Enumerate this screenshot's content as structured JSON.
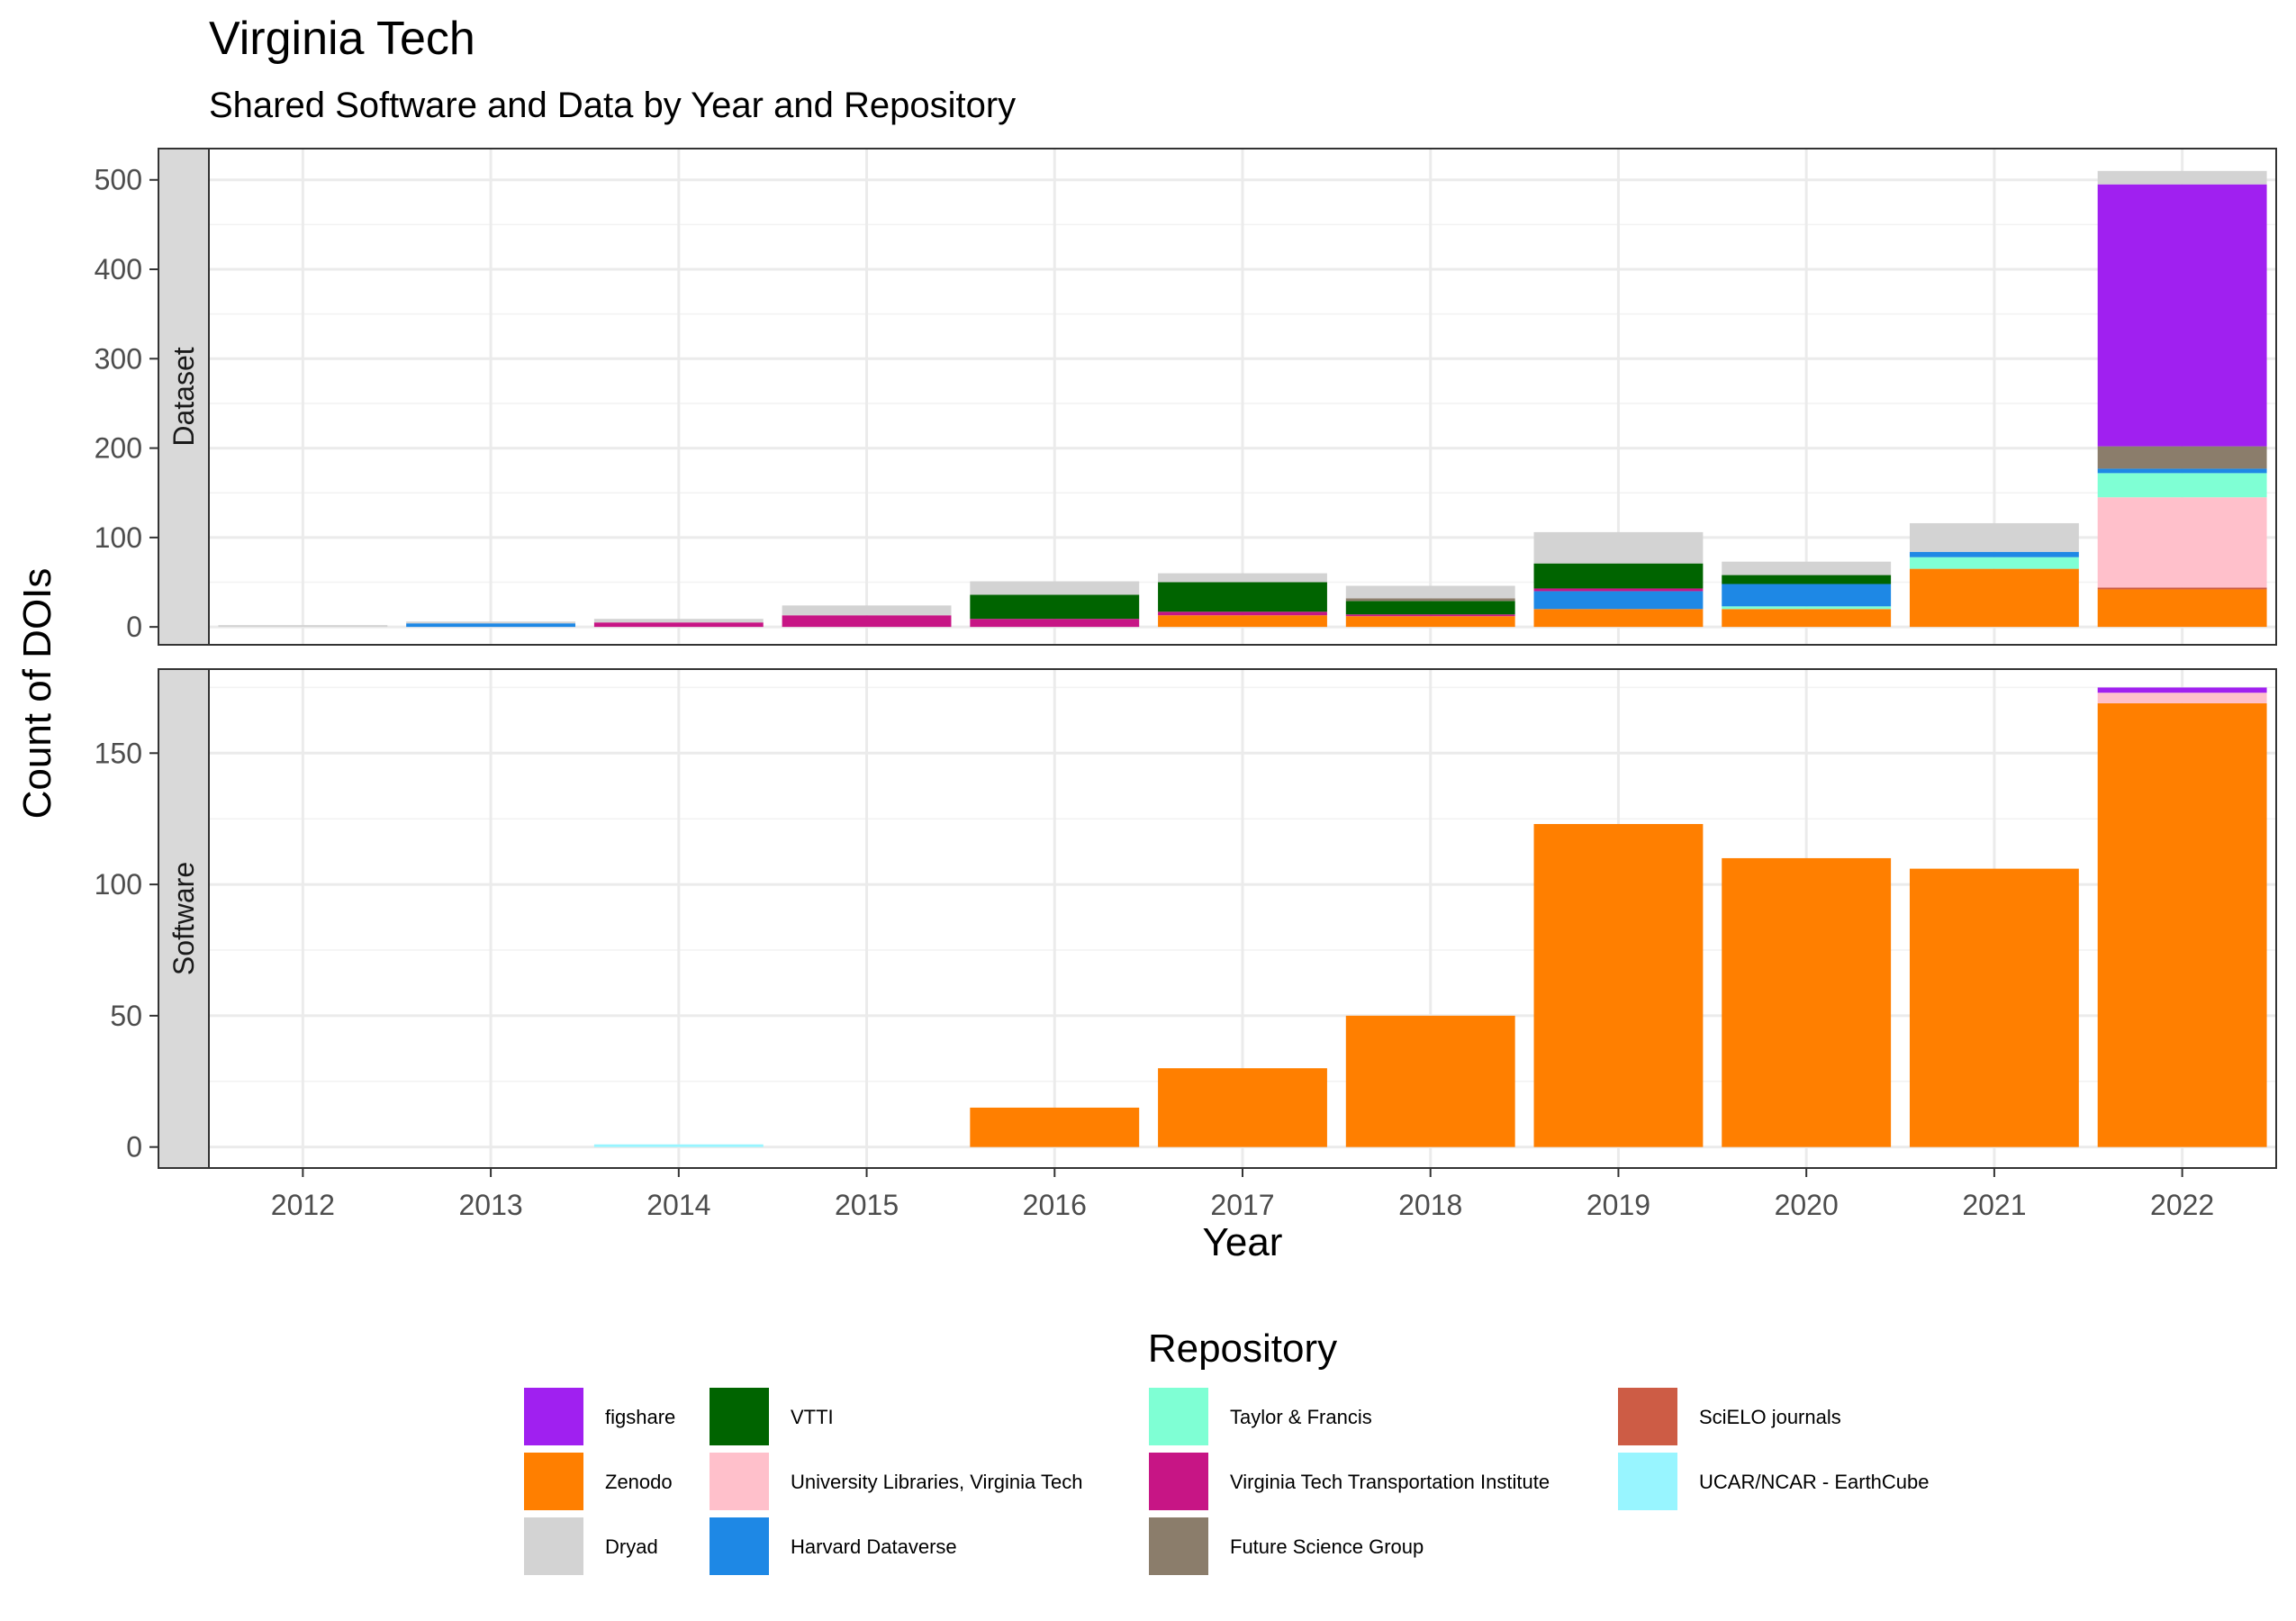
{
  "chart_data": {
    "type": "bar",
    "stacked": true,
    "title": "Virginia Tech",
    "subtitle": "Shared Software and Data by Year and Repository",
    "xlabel": "Year",
    "ylabel": "Count of DOIs",
    "legend_title": "Repository",
    "legend_position": "bottom",
    "grid": true,
    "categories": [
      "2012",
      "2013",
      "2014",
      "2015",
      "2016",
      "2017",
      "2018",
      "2019",
      "2020",
      "2021",
      "2022"
    ],
    "repositories": [
      {
        "name": "figshare",
        "color": "#A020F0"
      },
      {
        "name": "Zenodo",
        "color": "#FF7F00"
      },
      {
        "name": "Dryad",
        "color": "#D3D3D3"
      },
      {
        "name": "VTTI",
        "color": "#006400"
      },
      {
        "name": "University Libraries, Virginia Tech",
        "color": "#FFC0CB"
      },
      {
        "name": "Harvard Dataverse",
        "color": "#1E88E5"
      },
      {
        "name": "Taylor & Francis",
        "color": "#7FFFD4"
      },
      {
        "name": "Virginia Tech Transportation Institute",
        "color": "#C71585"
      },
      {
        "name": "Future Science Group",
        "color": "#8B7D6B"
      },
      {
        "name": "SciELO journals",
        "color": "#CD5C45"
      },
      {
        "name": "UCAR/NCAR - EarthCube",
        "color": "#98F5FF"
      }
    ],
    "panels": [
      {
        "label": "Dataset",
        "ylim": [
          -20,
          535
        ],
        "yticks": [
          0,
          100,
          200,
          300,
          400,
          500
        ],
        "stack_order": [
          "Zenodo",
          "SciELO journals",
          "University Libraries, Virginia Tech",
          "UCAR/NCAR - EarthCube",
          "Taylor & Francis",
          "Harvard Dataverse",
          "Virginia Tech Transportation Institute",
          "VTTI",
          "Future Science Group",
          "figshare",
          "Dryad"
        ],
        "values": {
          "2012": {
            "Dryad": 1
          },
          "2013": {
            "Harvard Dataverse": 4,
            "Dryad": 1
          },
          "2014": {
            "Virginia Tech Transportation Institute": 5,
            "Dryad": 4
          },
          "2015": {
            "Virginia Tech Transportation Institute": 13,
            "Dryad": 11
          },
          "2016": {
            "VTTI": 27,
            "Virginia Tech Transportation Institute": 9,
            "Dryad": 15
          },
          "2017": {
            "Zenodo": 13,
            "VTTI": 33,
            "Virginia Tech Transportation Institute": 4,
            "Dryad": 10
          },
          "2018": {
            "Zenodo": 12,
            "VTTI": 15,
            "Virginia Tech Transportation Institute": 2,
            "Future Science Group": 3,
            "Dryad": 14
          },
          "2019": {
            "Zenodo": 20,
            "VTTI": 28,
            "Virginia Tech Transportation Institute": 3,
            "Harvard Dataverse": 20,
            "Dryad": 35
          },
          "2020": {
            "Zenodo": 20,
            "VTTI": 10,
            "Taylor & Francis": 3,
            "Harvard Dataverse": 25,
            "Dryad": 15
          },
          "2021": {
            "Zenodo": 65,
            "Taylor & Francis": 13,
            "Harvard Dataverse": 6,
            "Dryad": 32
          },
          "2022": {
            "Zenodo": 42,
            "SciELO journals": 2,
            "University Libraries, Virginia Tech": 101,
            "Taylor & Francis": 27,
            "Harvard Dataverse": 5,
            "Future Science Group": 25,
            "figshare": 293,
            "Dryad": 15
          }
        }
      },
      {
        "label": "Software",
        "ylim": [
          -8,
          182
        ],
        "yticks": [
          0,
          50,
          100,
          150
        ],
        "stack_order": [
          "Zenodo",
          "University Libraries, Virginia Tech",
          "UCAR/NCAR - EarthCube",
          "figshare"
        ],
        "values": {
          "2014": {
            "UCAR/NCAR - EarthCube": 1
          },
          "2016": {
            "Zenodo": 15
          },
          "2017": {
            "Zenodo": 30
          },
          "2018": {
            "Zenodo": 50
          },
          "2019": {
            "Zenodo": 123
          },
          "2020": {
            "Zenodo": 110
          },
          "2021": {
            "Zenodo": 106
          },
          "2022": {
            "Zenodo": 169,
            "University Libraries, Virginia Tech": 4,
            "figshare": 2
          }
        }
      }
    ]
  }
}
